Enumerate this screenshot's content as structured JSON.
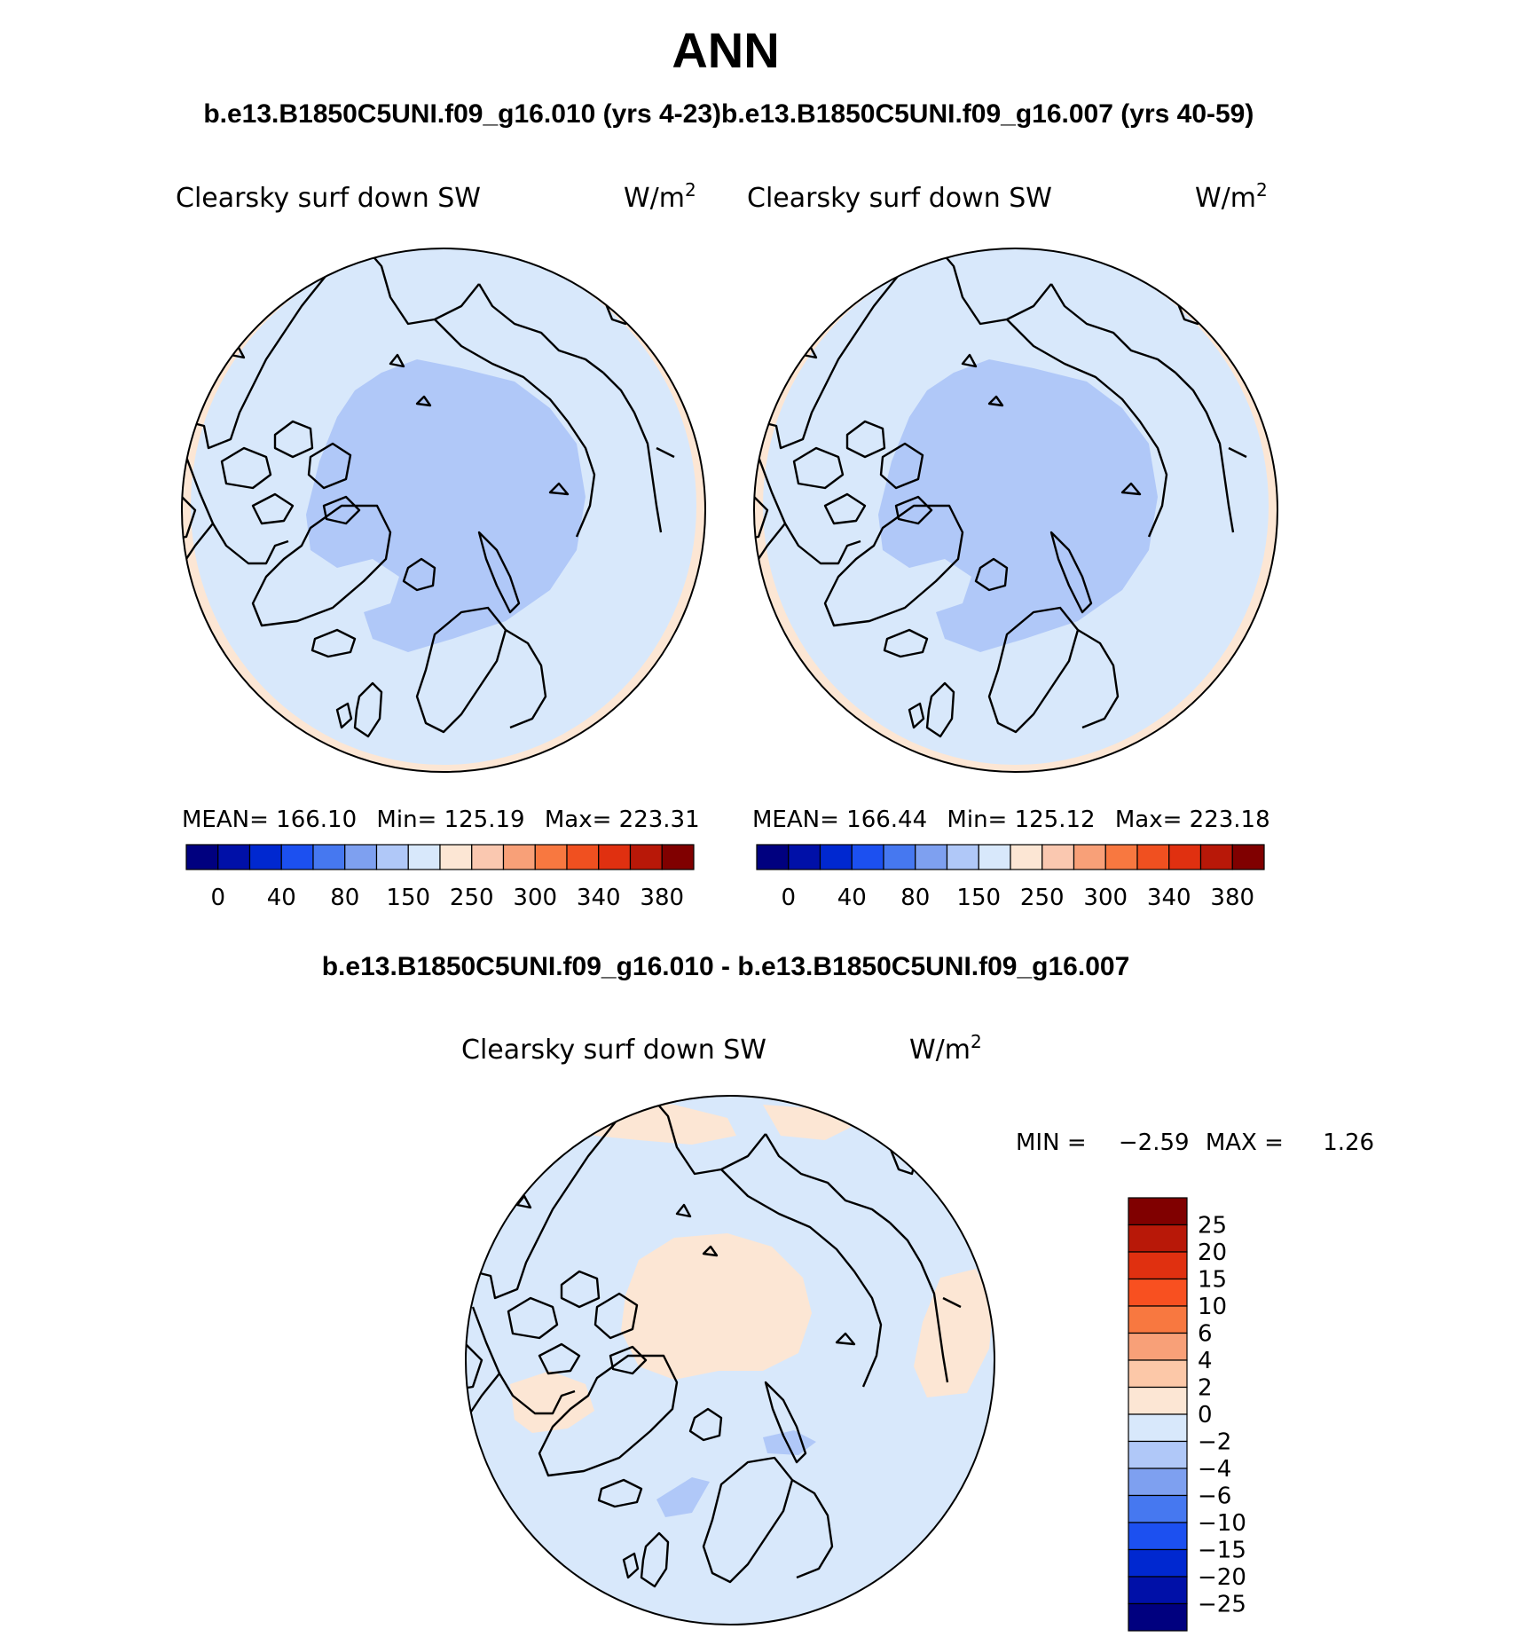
{
  "figure": {
    "title": "ANN",
    "subtitle_left": "b.e13.B1850C5UNI.f09_g16.010 (yrs 4-23)",
    "subtitle_right": "b.e13.B1850C5UNI.f09_g16.007 (yrs 40-59)",
    "diff_title": "b.e13.B1850C5UNI.f09_g16.010 - b.e13.B1850C5UNI.f09_g16.007"
  },
  "panels": [
    {
      "id": "case1",
      "variable": "Clearsky surf down SW",
      "units_base": "W/m",
      "units_exp": "2",
      "stats": {
        "mean_label": "MEAN=",
        "mean": "166.10",
        "min_label": "Min=",
        "min": "125.19",
        "max_label": "Max=",
        "max": "223.31"
      }
    },
    {
      "id": "case2",
      "variable": "Clearsky surf down SW",
      "units_base": "W/m",
      "units_exp": "2",
      "stats": {
        "mean_label": "MEAN=",
        "mean": "166.44",
        "min_label": "Min=",
        "min": "125.12",
        "max_label": "Max=",
        "max": "223.18"
      }
    },
    {
      "id": "difference",
      "variable": "Clearsky surf down SW",
      "units_base": "W/m",
      "units_exp": "2",
      "stats": {
        "min_label": "MIN =",
        "min": "−2.59",
        "max_label": "MAX =",
        "max": "1.26"
      }
    }
  ],
  "colorbar_abs": {
    "colors": [
      "#00007f",
      "#0010a8",
      "#0028d0",
      "#1c50f0",
      "#4678f0",
      "#7ea0f0",
      "#b0c8f8",
      "#d8e8fb",
      "#fce6d4",
      "#fac8b0",
      "#f8a078",
      "#f87840",
      "#f05020",
      "#e03010",
      "#b81808",
      "#800000"
    ],
    "labels": [
      "0",
      "40",
      "80",
      "150",
      "250",
      "300",
      "340",
      "380"
    ]
  },
  "colorbar_diff": {
    "colors": [
      "#800000",
      "#b81808",
      "#e03010",
      "#f85020",
      "#f87840",
      "#f8a078",
      "#fcc8a8",
      "#fce6d4",
      "#d8e8fb",
      "#b0c8f8",
      "#7ea0f0",
      "#4678f0",
      "#1c50f0",
      "#0028d0",
      "#0010a8",
      "#00007f"
    ],
    "labels": [
      "25",
      "20",
      "15",
      "10",
      "6",
      "4",
      "2",
      "0",
      "−2",
      "−4",
      "−6",
      "−10",
      "−15",
      "−20",
      "−25"
    ]
  },
  "map_colors": {
    "outer_band": "#fce6d4",
    "mid_region": "#d8e8fb",
    "inner_region": "#b0c8f8",
    "diff_background": "#d8e8fb",
    "diff_positive": "#fce6d4",
    "diff_negative": "#b0c8f8"
  }
}
